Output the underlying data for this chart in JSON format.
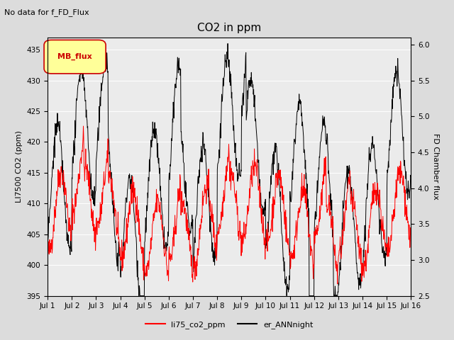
{
  "title": "CO2 in ppm",
  "top_left_text": "No data for f_FD_Flux",
  "legend_box_text": "MB_flux",
  "ylabel_left": "LI7500 CO2 (ppm)",
  "ylabel_right": "FD Chamber flux",
  "ylim_left": [
    395,
    437
  ],
  "ylim_right": [
    2.5,
    6.1
  ],
  "yticks_left": [
    395,
    400,
    405,
    410,
    415,
    420,
    425,
    430,
    435
  ],
  "yticks_right": [
    2.5,
    3.0,
    3.5,
    4.0,
    4.5,
    5.0,
    5.5,
    6.0
  ],
  "xlim": [
    0,
    15
  ],
  "xtick_labels": [
    "Jul 1",
    "Jul 2",
    "Jul 3",
    "Jul 4",
    "Jul 5",
    "Jul 6",
    "Jul 7",
    "Jul 8",
    "Jul 9",
    "Jul 10",
    "Jul 11",
    "Jul 12",
    "Jul 13",
    "Jul 14",
    "Jul 15",
    "Jul 16"
  ],
  "bg_color": "#dcdcdc",
  "plot_bg_color": "#ebebeb",
  "line_red_color": "#ff0000",
  "line_black_color": "#000000",
  "legend_box_bg": "#ffff99",
  "legend_box_edge": "#cc0000",
  "title_fontsize": 11,
  "label_fontsize": 8,
  "tick_fontsize": 7.5,
  "legend_fontsize": 8,
  "line_lw": 0.7,
  "legend_lw": 1.5,
  "grid_color": "#ffffff",
  "grid_lw": 0.7
}
